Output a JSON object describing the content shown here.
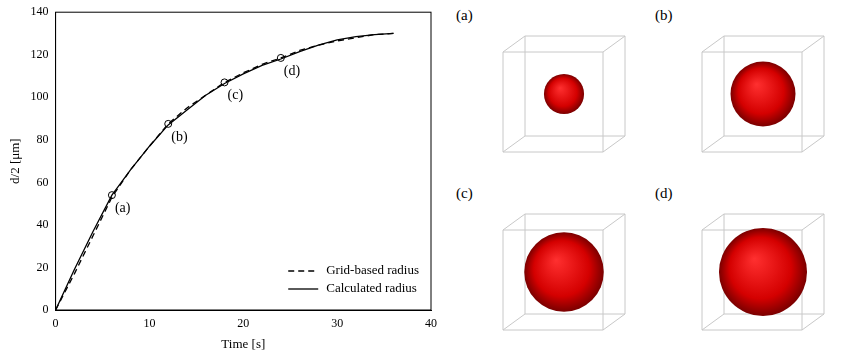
{
  "chart_data": {
    "type": "line",
    "x_label": "Time [s]",
    "y_label": "d/2 [μm]",
    "x": [
      0,
      2,
      4,
      6,
      8,
      10,
      12,
      14,
      16,
      18,
      20,
      22,
      24,
      26,
      28,
      30,
      32,
      34,
      36
    ],
    "series": [
      {
        "name": "Grid-based radius",
        "color": "#000000",
        "line_style": "dashed",
        "values": [
          0,
          17,
          35,
          53,
          66,
          77,
          87.5,
          95,
          101,
          107,
          111.5,
          115.5,
          118.5,
          122,
          124.5,
          126.5,
          128,
          129.5,
          130
        ]
      },
      {
        "name": "Calculated radius",
        "color": "#000000",
        "line_style": "solid",
        "values": [
          0,
          19,
          37,
          54,
          66,
          77,
          87,
          94,
          101,
          106.5,
          111,
          115,
          118,
          121.5,
          124.5,
          127,
          128.5,
          129.5,
          130
        ]
      }
    ],
    "annotations": [
      {
        "label": "(a)",
        "x": 6,
        "y": 54
      },
      {
        "label": "(b)",
        "x": 12,
        "y": 87.5
      },
      {
        "label": "(c)",
        "x": 18,
        "y": 107
      },
      {
        "label": "(d)",
        "x": 24,
        "y": 118.5
      }
    ],
    "xlim": [
      0,
      40
    ],
    "xticks": [
      0,
      10,
      20,
      30,
      40
    ],
    "ylim": [
      0,
      140
    ],
    "yticks": [
      0,
      20,
      40,
      60,
      80,
      100,
      120,
      140
    ],
    "grid": false,
    "legend": "lower right",
    "marker": "circle",
    "side_panels": [
      "(a)",
      "(b)",
      "(c)",
      "(d)"
    ]
  }
}
